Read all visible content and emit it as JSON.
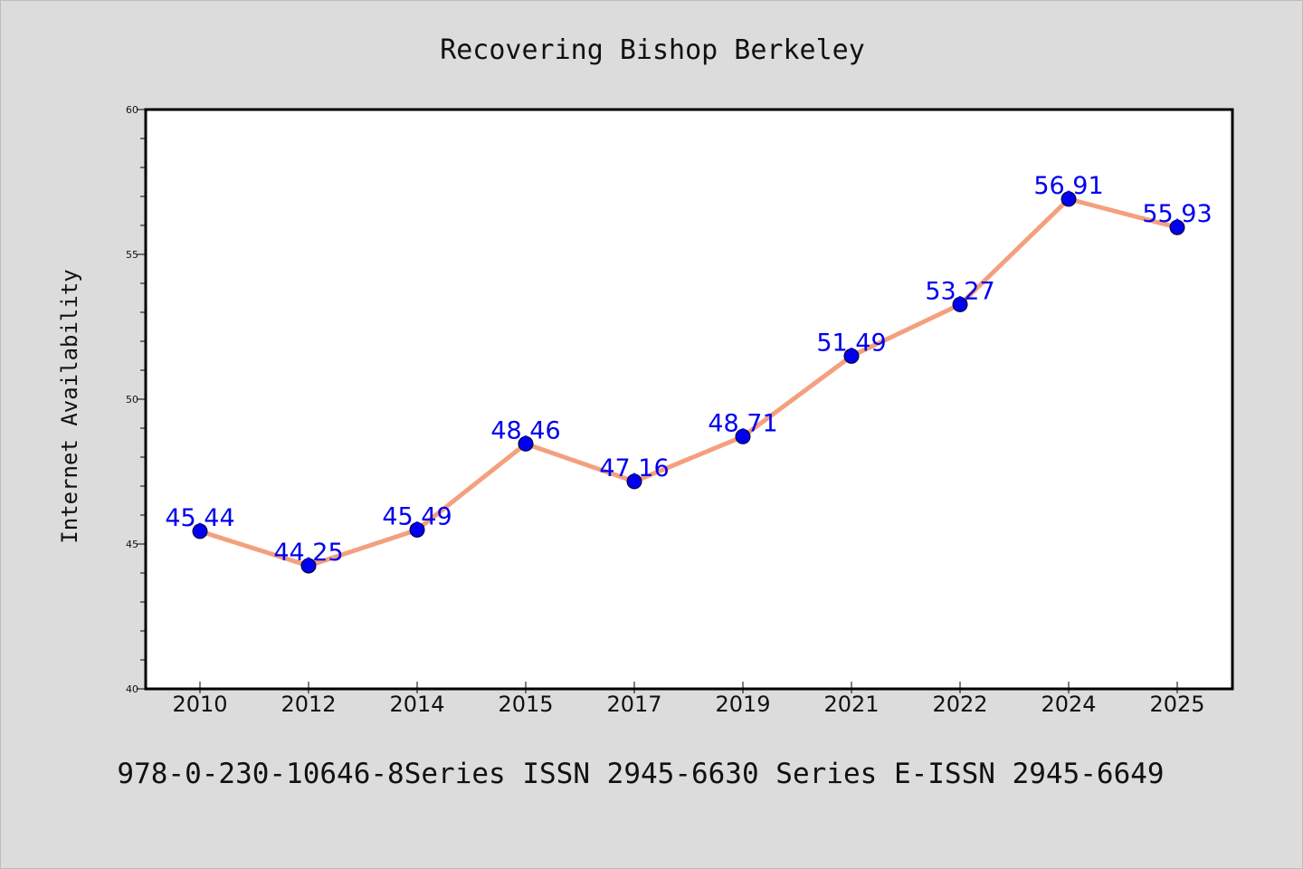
{
  "colors": {
    "background": "#dcdcdc",
    "plot_background": "#ffffff",
    "line": "#f4a07e",
    "marker": "#0000ee",
    "data_label": "#0000ee"
  },
  "footer": {
    "text": "978-0-230-10646-8Series ISSN 2945-6630 Series E-ISSN 2945-6649"
  },
  "chart_data": {
    "type": "line",
    "title": "Recovering Bishop Berkeley",
    "xlabel": "",
    "ylabel": "Internet Availability",
    "categories": [
      "2010",
      "2012",
      "2014",
      "2015",
      "2017",
      "2019",
      "2021",
      "2022",
      "2024",
      "2025"
    ],
    "values": [
      45.44,
      44.25,
      45.49,
      48.46,
      47.16,
      48.71,
      51.49,
      53.27,
      56.91,
      55.93
    ],
    "data_labels": [
      "45.44",
      "44.25",
      "45.49",
      "48.46",
      "47.16",
      "48.71",
      "51.49",
      "53.27",
      "56.91",
      "55.93"
    ],
    "ylim": [
      40,
      60
    ],
    "yticks": [
      40,
      45,
      50,
      55,
      60
    ],
    "yminor_step": 1,
    "grid": false,
    "legend": "none"
  }
}
